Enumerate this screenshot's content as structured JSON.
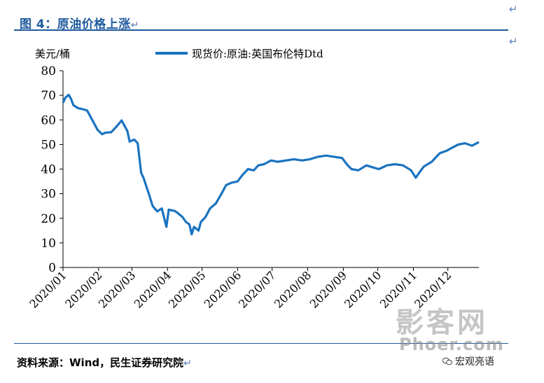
{
  "header": {
    "title": "图 4：原油价格上涨"
  },
  "para_marks": {
    "title_end": "↵",
    "top_right_1": "↵",
    "top_right_2": "↵",
    "source_end": "↵"
  },
  "footer": {
    "source": "资料来源：Wind，民生证券研究院"
  },
  "watermark": {
    "line1": "影客网",
    "line2": "Phoer.com",
    "line3": "宏观亮语"
  },
  "colors": {
    "accent": "#1f5a9e",
    "series": "#1a73c0",
    "axis": "#000000"
  },
  "chart_data": {
    "type": "line",
    "ylabel": "美元/桶",
    "ylim": [
      0,
      80
    ],
    "yticks": [
      "0",
      "10",
      "20",
      "30",
      "40",
      "50",
      "60",
      "70",
      "80"
    ],
    "xlim": [
      "2020-01-01",
      "2020-12-28"
    ],
    "xticks": [
      "2020/01",
      "2020/02",
      "2020/03",
      "2020/04",
      "2020/05",
      "2020/06",
      "2020/07",
      "2020/08",
      "2020/09",
      "2020/10",
      "2020/11",
      "2020/12"
    ],
    "legend_position": "top",
    "grid": false,
    "series": [
      {
        "name": "现货价:原油:英国布伦特Dtd",
        "x": [
          "2020-01-01",
          "2020-01-03",
          "2020-01-06",
          "2020-01-08",
          "2020-01-10",
          "2020-01-14",
          "2020-01-17",
          "2020-01-22",
          "2020-01-27",
          "2020-01-31",
          "2020-02-04",
          "2020-02-07",
          "2020-02-12",
          "2020-02-17",
          "2020-02-21",
          "2020-02-26",
          "2020-02-28",
          "2020-03-03",
          "2020-03-06",
          "2020-03-09",
          "2020-03-11",
          "2020-03-16",
          "2020-03-19",
          "2020-03-23",
          "2020-03-27",
          "2020-03-31",
          "2020-04-02",
          "2020-04-07",
          "2020-04-09",
          "2020-04-14",
          "2020-04-17",
          "2020-04-20",
          "2020-04-22",
          "2020-04-24",
          "2020-04-28",
          "2020-04-30",
          "2020-05-04",
          "2020-05-08",
          "2020-05-13",
          "2020-05-18",
          "2020-05-22",
          "2020-05-27",
          "2020-06-01",
          "2020-06-05",
          "2020-06-10",
          "2020-06-15",
          "2020-06-19",
          "2020-06-24",
          "2020-06-30",
          "2020-07-06",
          "2020-07-13",
          "2020-07-20",
          "2020-07-27",
          "2020-08-03",
          "2020-08-10",
          "2020-08-17",
          "2020-08-24",
          "2020-08-31",
          "2020-09-04",
          "2020-09-08",
          "2020-09-14",
          "2020-09-21",
          "2020-09-28",
          "2020-10-02",
          "2020-10-09",
          "2020-10-16",
          "2020-10-23",
          "2020-10-30",
          "2020-11-03",
          "2020-11-06",
          "2020-11-10",
          "2020-11-17",
          "2020-11-24",
          "2020-11-30",
          "2020-12-04",
          "2020-12-10",
          "2020-12-16",
          "2020-12-22",
          "2020-12-28"
        ],
        "values": [
          67.0,
          69.0,
          70.2,
          68.5,
          66.0,
          64.8,
          64.5,
          63.8,
          59.5,
          56.0,
          54.2,
          54.8,
          55.0,
          57.5,
          59.8,
          55.5,
          51.2,
          52.0,
          50.5,
          38.5,
          36.5,
          29.5,
          25.0,
          22.8,
          24.0,
          16.5,
          23.5,
          23.0,
          22.5,
          20.5,
          18.5,
          17.5,
          13.5,
          16.5,
          15.0,
          18.5,
          20.5,
          24.0,
          26.0,
          30.0,
          33.5,
          34.5,
          35.0,
          37.5,
          40.0,
          39.5,
          41.5,
          42.0,
          43.5,
          43.0,
          43.5,
          44.0,
          43.5,
          44.0,
          45.0,
          45.5,
          45.0,
          44.5,
          42.0,
          40.0,
          39.5,
          41.5,
          40.5,
          40.0,
          41.5,
          42.0,
          41.5,
          39.5,
          36.5,
          38.5,
          41.0,
          43.0,
          46.5,
          47.5,
          48.5,
          50.0,
          50.5,
          49.5,
          51.0
        ]
      }
    ]
  }
}
